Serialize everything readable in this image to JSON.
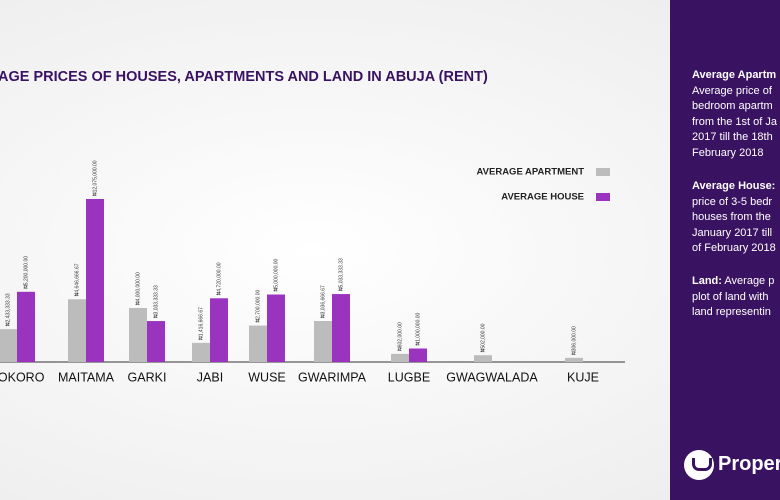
{
  "chart_data": {
    "type": "bar",
    "title": "AGE PRICES OF HOUSES, APARTMENTS AND LAND IN ABUJA (RENT)",
    "categories": [
      "SOKORO",
      "MAITAMA",
      "GARKI",
      "JABI",
      "WUSE",
      "GWARIMPA",
      "LUGBE",
      "GWAGWALADA",
      "KUJE"
    ],
    "series": [
      {
        "name": "AVERAGE APARTMENT",
        "color": "#bcbcbc",
        "values": [
          2433333.33,
          4646666.67,
          4000000,
          1416666.67,
          2700000,
          3036666.67,
          602000,
          502000,
          306000
        ],
        "value_labels": [
          "₦2,433,333.33",
          "₦4,646,666.67",
          "₦4,000,000.00",
          "₦1,416,666.67",
          "₦2,700,000.00",
          "₦3,036,666.67",
          "₦602,000.00",
          "₦502,000.00",
          "₦306,000.00"
        ]
      },
      {
        "name": "AVERAGE HOUSE",
        "color": "#9a34be",
        "values": [
          5200000,
          12075000,
          3033333.33,
          4720000,
          5000000,
          5033333.33,
          1000000,
          null,
          null
        ],
        "value_labels": [
          "₦5,200,000.00",
          "₦12,075,000.00",
          "₦3,033,333.33",
          "₦4,720,000.00",
          "₦5,000,000.00",
          "₦5,033,333.33",
          "₦1,000,000.00",
          null,
          null
        ]
      }
    ],
    "legend": "right"
  },
  "sidebar": [
    {
      "heading": "Average Apartm",
      "lines": [
        "Average price of",
        "bedroom apartm",
        "from the 1st of Ja",
        "2017 till the 18th",
        "February 2018"
      ]
    },
    {
      "heading": "Average House:",
      "lines": [
        "price of  3-5 bedr",
        "houses from the",
        "January 2017 till",
        "of February 2018"
      ]
    },
    {
      "heading": "Land:",
      "inline": " Average p",
      "lines": [
        "plot of land with",
        "land representin"
      ]
    }
  ],
  "logo": "Propert"
}
